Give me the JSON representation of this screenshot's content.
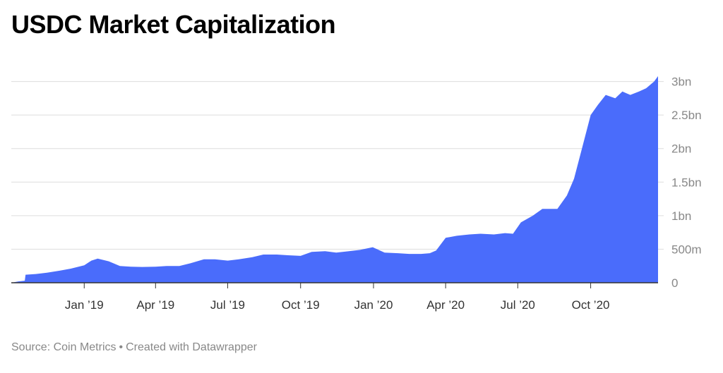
{
  "header": {
    "title": "USDC Market Capitalization"
  },
  "footer": {
    "source": "Source: Coin Metrics",
    "separator": "•",
    "credit": "Created with Datawrapper"
  },
  "colors": {
    "area": "#4a6cfb",
    "grid": "#dddddd",
    "axis": "#333333",
    "tick_text": "#888888"
  },
  "chart_data": {
    "type": "area",
    "title": "USDC Market Capitalization",
    "xlabel": "",
    "ylabel": "",
    "x_range": [
      "2018-10-01",
      "2020-12-25"
    ],
    "ylim": [
      0,
      3000000000
    ],
    "y_ticks": [
      0,
      500000000,
      1000000000,
      1500000000,
      2000000000,
      2500000000,
      3000000000
    ],
    "y_tick_labels": [
      "0",
      "500m",
      "1bn",
      "1.5bn",
      "2bn",
      "2.5bn",
      "3bn"
    ],
    "x_ticks": [
      "2019-01-01",
      "2019-04-01",
      "2019-07-01",
      "2019-10-01",
      "2020-01-01",
      "2020-04-01",
      "2020-07-01",
      "2020-10-01"
    ],
    "x_tick_labels": [
      "Jan ’19",
      "Apr ’19",
      "Jul ’19",
      "Oct ’19",
      "Jan ’20",
      "Apr ’20",
      "Jul ’20",
      "Oct ’20"
    ],
    "grid": true,
    "series": [
      {
        "dates": [
          "2018-10-01",
          "2018-10-10",
          "2018-10-18",
          "2018-10-19",
          "2018-11-01",
          "2018-11-15",
          "2018-12-01",
          "2018-12-15",
          "2019-01-01",
          "2019-01-10",
          "2019-01-18",
          "2019-02-01",
          "2019-02-15",
          "2019-03-01",
          "2019-03-15",
          "2019-04-01",
          "2019-04-15",
          "2019-05-01",
          "2019-05-15",
          "2019-06-01",
          "2019-06-15",
          "2019-07-01",
          "2019-07-15",
          "2019-08-01",
          "2019-08-15",
          "2019-09-01",
          "2019-09-15",
          "2019-10-01",
          "2019-10-15",
          "2019-11-01",
          "2019-11-15",
          "2019-12-01",
          "2019-12-15",
          "2019-12-31",
          "2020-01-15",
          "2020-02-01",
          "2020-02-15",
          "2020-03-01",
          "2020-03-12",
          "2020-03-20",
          "2020-04-01",
          "2020-04-15",
          "2020-05-01",
          "2020-05-15",
          "2020-06-01",
          "2020-06-15",
          "2020-06-25",
          "2020-07-05",
          "2020-07-20",
          "2020-08-01",
          "2020-08-10",
          "2020-08-20",
          "2020-09-01",
          "2020-09-10",
          "2020-09-20",
          "2020-10-01",
          "2020-10-10",
          "2020-10-20",
          "2020-11-01",
          "2020-11-10",
          "2020-11-20",
          "2020-12-01",
          "2020-12-10",
          "2020-12-20",
          "2020-12-25"
        ],
        "values": [
          0,
          20000000,
          30000000,
          120000000,
          130000000,
          150000000,
          180000000,
          210000000,
          260000000,
          330000000,
          360000000,
          320000000,
          250000000,
          240000000,
          235000000,
          240000000,
          250000000,
          250000000,
          290000000,
          350000000,
          350000000,
          330000000,
          350000000,
          380000000,
          420000000,
          420000000,
          410000000,
          400000000,
          460000000,
          470000000,
          450000000,
          470000000,
          490000000,
          530000000,
          450000000,
          440000000,
          430000000,
          430000000,
          440000000,
          480000000,
          670000000,
          700000000,
          720000000,
          730000000,
          720000000,
          740000000,
          730000000,
          900000000,
          1000000000,
          1100000000,
          1100000000,
          1100000000,
          1300000000,
          1550000000,
          2000000000,
          2500000000,
          2650000000,
          2800000000,
          2750000000,
          2850000000,
          2800000000,
          2850000000,
          2900000000,
          3000000000,
          3080000000
        ]
      }
    ]
  }
}
